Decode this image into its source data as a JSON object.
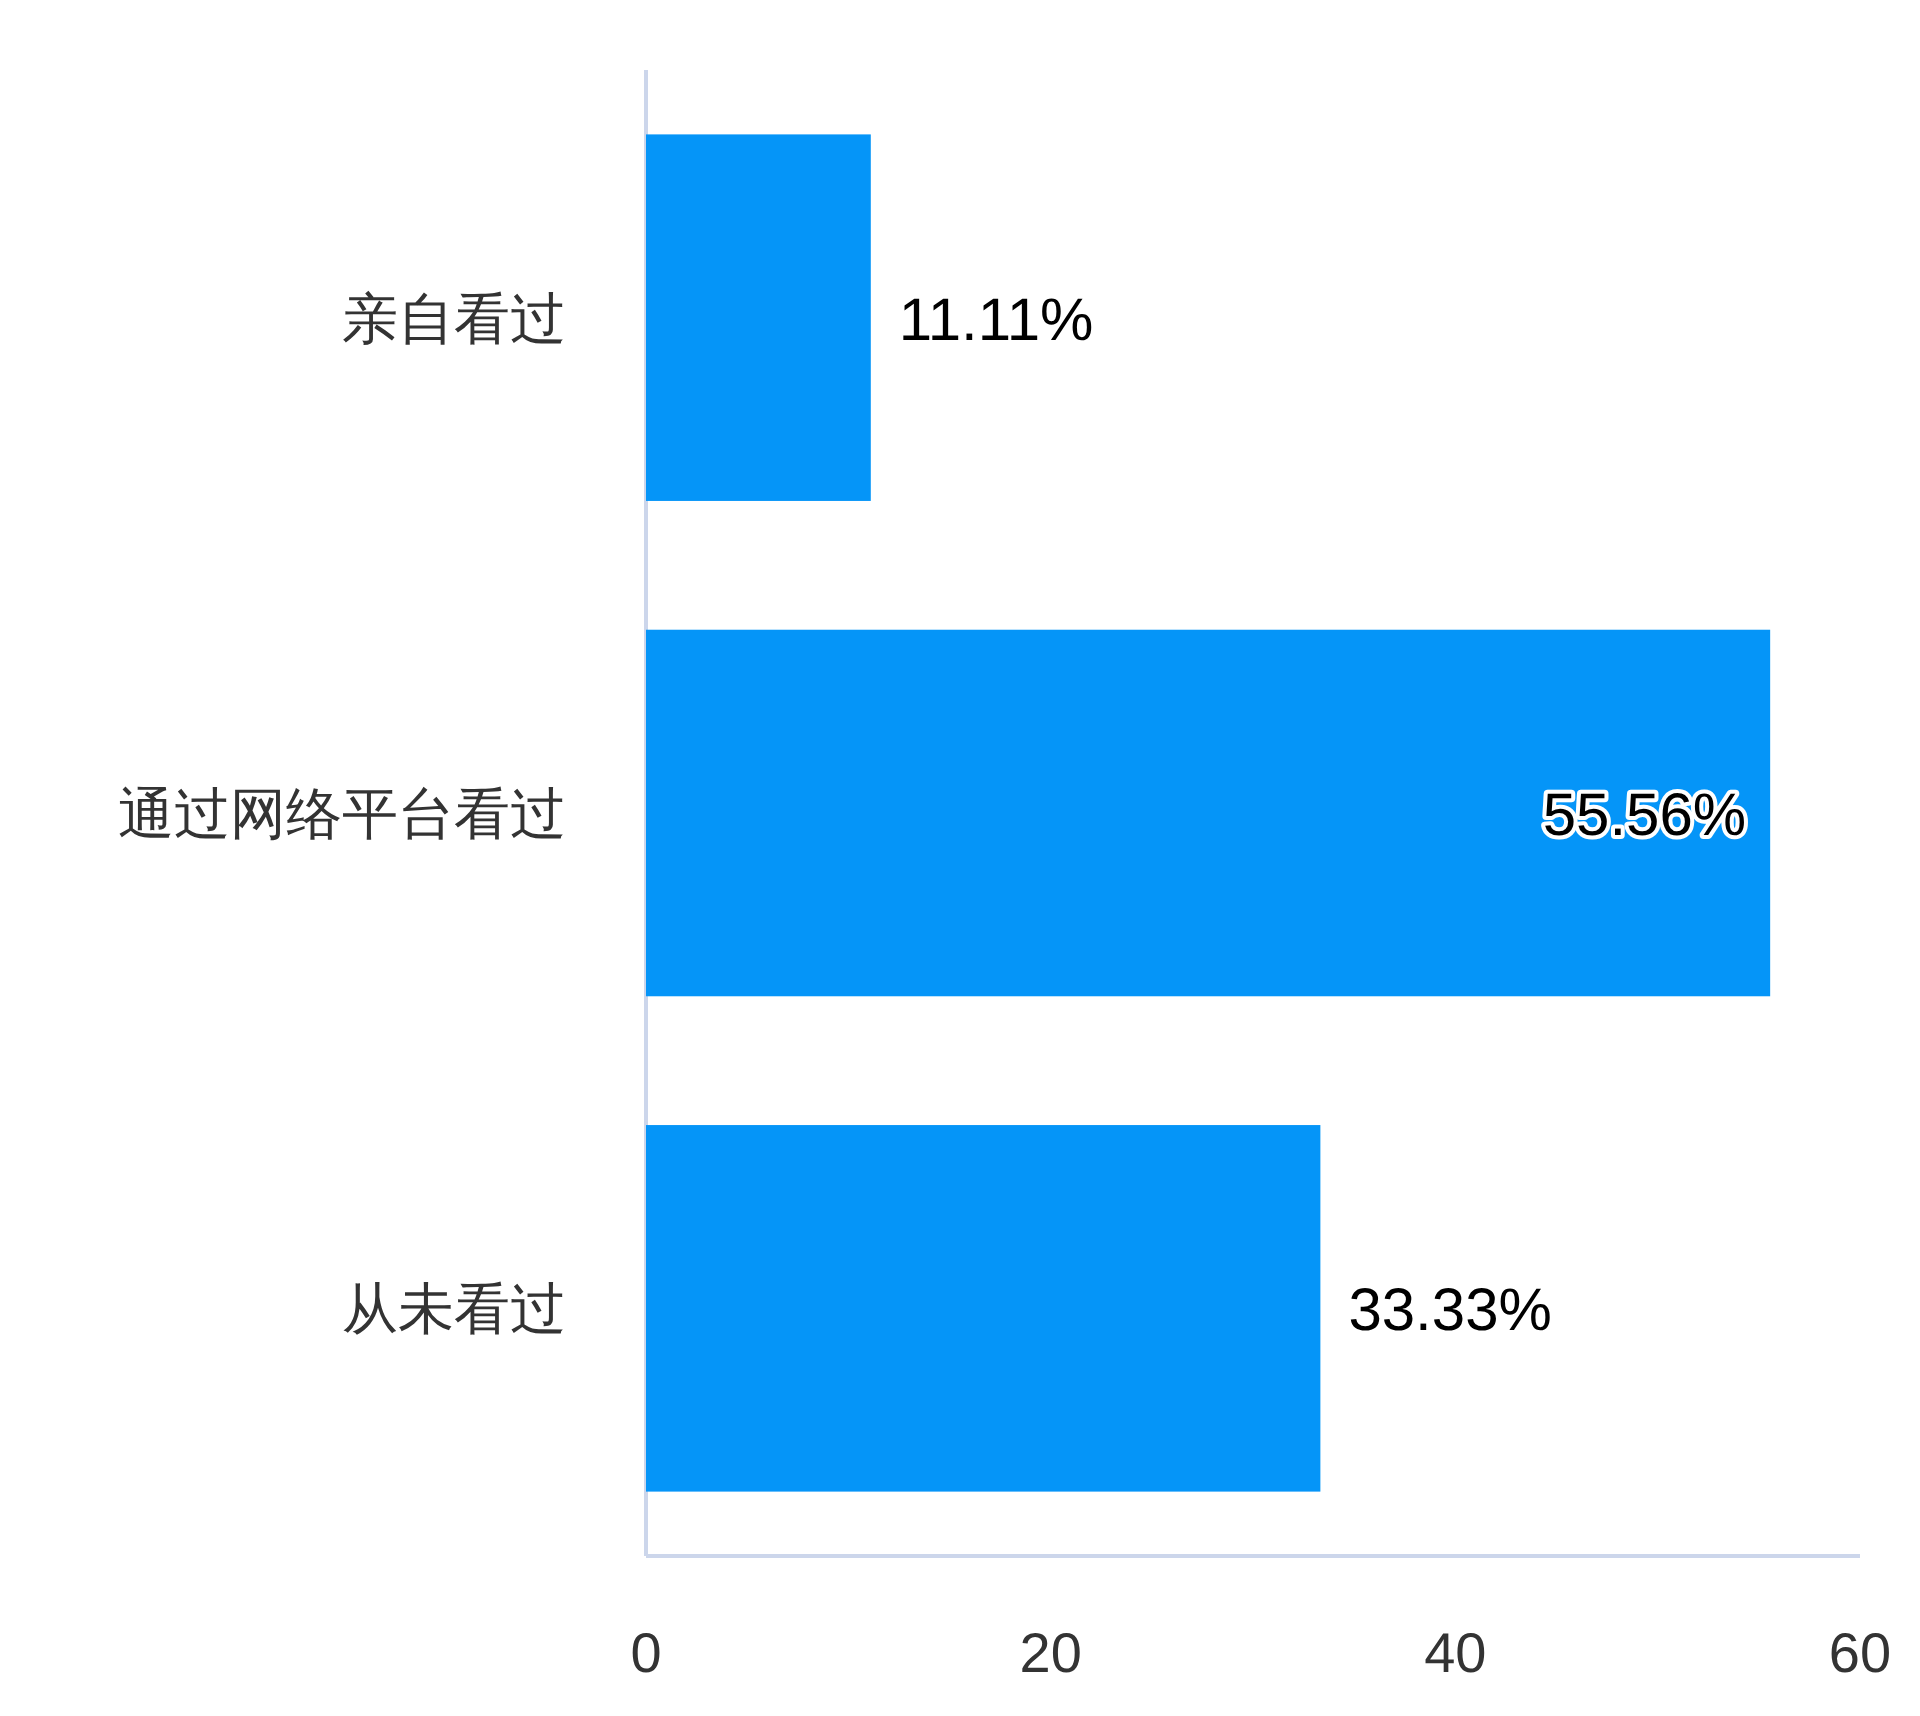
{
  "chart_data": {
    "type": "bar",
    "orientation": "horizontal",
    "categories": [
      "亲自看过",
      "通过网络平台看过",
      "从未看过"
    ],
    "values": [
      11.11,
      55.56,
      33.33
    ],
    "value_labels": [
      "11.11%",
      "55.56%",
      "33.33%"
    ],
    "color": "#0595f8",
    "xlim": [
      0,
      60
    ],
    "xticks": [
      0,
      20,
      40,
      60
    ],
    "grid": false
  }
}
